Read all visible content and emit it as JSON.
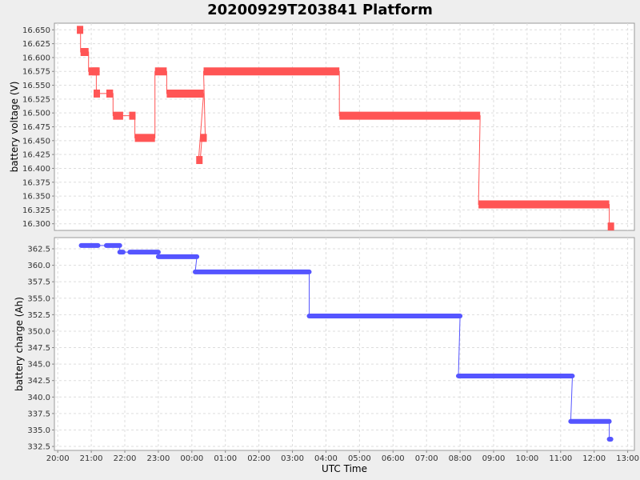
{
  "title": "20200929T203841 Platform",
  "chart_data": [
    {
      "type": "line",
      "title": "20200929T203841 Platform",
      "ylabel": "battery voltage (V)",
      "xlabel": "",
      "ylim": [
        16.288,
        16.662
      ],
      "yticks": [
        16.3,
        16.325,
        16.35,
        16.375,
        16.4,
        16.425,
        16.45,
        16.475,
        16.5,
        16.525,
        16.55,
        16.575,
        16.6,
        16.625,
        16.65
      ],
      "ytick_labels": [
        "16.300",
        "16.325",
        "16.350",
        "16.375",
        "16.400",
        "16.425",
        "16.450",
        "16.475",
        "16.500",
        "16.525",
        "16.550",
        "16.575",
        "16.600",
        "16.625",
        "16.650"
      ],
      "grid": true,
      "color": "#ff5555",
      "series": [
        {
          "x_hours": [
            20.65,
            20.68,
            20.68,
            20.92,
            20.92,
            21.25,
            21.1,
            21.15,
            21.15,
            21.18,
            21.45,
            21.65,
            21.65,
            21.95,
            22.15,
            22.3,
            22.3,
            22.9,
            22.9,
            23.25,
            23.25,
            24.35,
            24.2,
            24.25,
            24.3,
            24.4,
            24.35,
            28.4,
            28.4,
            32.6,
            32.55,
            36.45,
            36.45,
            36.55
          ],
          "values": [
            16.65,
            16.65,
            16.61,
            16.61,
            16.575,
            16.575,
            16.575,
            16.575,
            16.535,
            16.535,
            16.535,
            16.535,
            16.495,
            16.495,
            16.495,
            16.495,
            16.455,
            16.455,
            16.575,
            16.575,
            16.535,
            16.535,
            16.415,
            16.415,
            16.455,
            16.455,
            16.575,
            16.575,
            16.495,
            16.495,
            16.335,
            16.335,
            16.295,
            16.295
          ]
        }
      ]
    },
    {
      "type": "line",
      "ylabel": "battery charge (Ah)",
      "xlabel": "UTC Time",
      "ylim": [
        331.9,
        364.2
      ],
      "yticks": [
        332.5,
        335.0,
        337.5,
        340.0,
        342.5,
        345.0,
        347.5,
        350.0,
        352.5,
        355.0,
        357.5,
        360.0,
        362.5
      ],
      "ytick_labels": [
        "332.5",
        "335.0",
        "337.5",
        "340.0",
        "342.5",
        "345.0",
        "347.5",
        "350.0",
        "352.5",
        "355.0",
        "357.5",
        "360.0",
        "362.5"
      ],
      "xticks_hours": [
        20,
        21,
        22,
        23,
        24,
        25,
        26,
        27,
        28,
        29,
        30,
        31,
        32,
        33,
        34,
        35,
        36,
        37
      ],
      "xtick_labels": [
        "20:00",
        "21:00",
        "22:00",
        "23:00",
        "00:00",
        "01:00",
        "02:00",
        "03:00",
        "04:00",
        "05:00",
        "06:00",
        "07:00",
        "08:00",
        "09:00",
        "10:00",
        "11:00",
        "12:00",
        "13:00"
      ],
      "xlim_hours": [
        19.9,
        37.2
      ],
      "grid": true,
      "color": "#5555ff",
      "series": [
        {
          "x_hours": [
            20.7,
            21.2,
            21.45,
            21.85,
            21.85,
            21.95,
            22.15,
            23.0,
            23.0,
            24.15,
            24.1,
            27.5,
            27.5,
            32.0,
            31.95,
            35.35,
            35.3,
            36.45,
            36.45,
            36.5
          ],
          "values": [
            363.0,
            363.0,
            363.0,
            363.0,
            362.0,
            362.0,
            362.0,
            362.0,
            361.3,
            361.3,
            359.0,
            359.0,
            352.3,
            352.3,
            343.2,
            343.2,
            336.3,
            336.3,
            333.6,
            333.6
          ]
        }
      ]
    }
  ]
}
